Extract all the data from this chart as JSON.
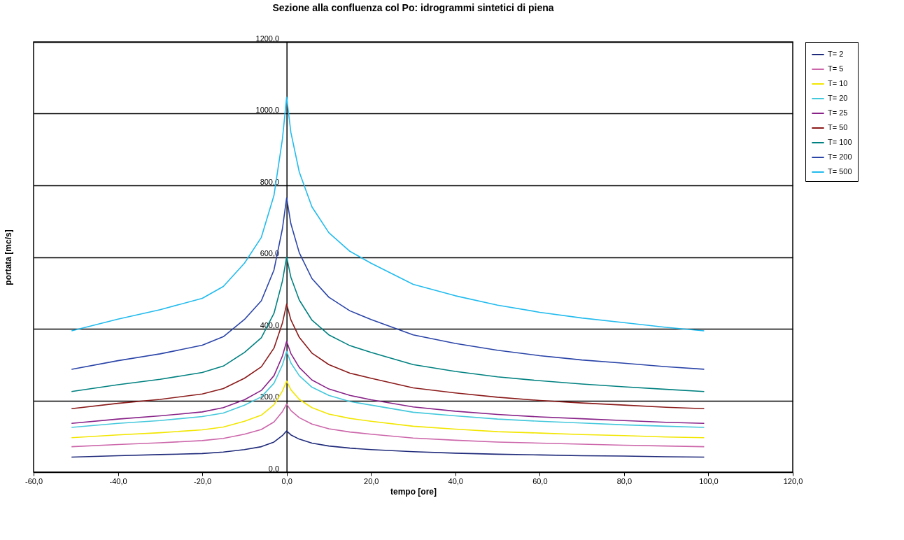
{
  "chart_data": {
    "type": "line",
    "title": "Sezione alla confluenza col Po: idrogrammi sintetici di piena",
    "xlabel": "tempo [ore]",
    "ylabel": "portata [mc/s]",
    "x": [
      -51,
      -40,
      -30,
      -20,
      -15,
      -10,
      -6,
      -3,
      -1,
      0,
      1,
      3,
      6,
      10,
      15,
      20,
      30,
      40,
      50,
      60,
      70,
      80,
      90,
      99
    ],
    "series": [
      {
        "name": "T= 2",
        "color": "#1f2a7a",
        "values": [
          42,
          46,
          49,
          52,
          56,
          63,
          71,
          84,
          102,
          115,
          104,
          92,
          81,
          73,
          67,
          63,
          57,
          53,
          50,
          48,
          46,
          45,
          43,
          42
        ]
      },
      {
        "name": "T= 5",
        "color": "#cc66aa",
        "values": [
          71,
          77,
          82,
          88,
          94,
          106,
          119,
          140,
          169,
          190,
          172,
          152,
          134,
          121,
          112,
          106,
          95,
          89,
          84,
          81,
          78,
          75,
          73,
          71
        ]
      },
      {
        "name": "T= 10",
        "color": "#f2e600",
        "values": [
          96,
          104,
          110,
          118,
          126,
          142,
          159,
          188,
          226,
          254,
          230,
          203,
          180,
          162,
          150,
          142,
          128,
          120,
          113,
          109,
          105,
          102,
          98,
          96
        ]
      },
      {
        "name": "T= 20",
        "color": "#44c8dc",
        "values": [
          125,
          136,
          144,
          155,
          165,
          187,
          210,
          248,
          299,
          337,
          305,
          269,
          237,
          214,
          197,
          187,
          167,
          157,
          148,
          142,
          137,
          132,
          128,
          125
        ]
      },
      {
        "name": "T= 25",
        "color": "#882288",
        "values": [
          136,
          148,
          157,
          168,
          180,
          202,
          228,
          269,
          324,
          365,
          331,
          292,
          257,
          232,
          214,
          202,
          182,
          170,
          161,
          154,
          149,
          144,
          139,
          136
        ]
      },
      {
        "name": "T= 50",
        "color": "#8b1a1a",
        "values": [
          177,
          192,
          203,
          218,
          233,
          262,
          294,
          346,
          416,
          469,
          425,
          376,
          332,
          300,
          276,
          262,
          235,
          221,
          209,
          200,
          193,
          187,
          181,
          177
        ]
      },
      {
        "name": "T= 100",
        "color": "#008080",
        "values": [
          225,
          244,
          259,
          278,
          296,
          334,
          375,
          443,
          533,
          600,
          544,
          480,
          424,
          383,
          353,
          334,
          300,
          281,
          266,
          255,
          246,
          238,
          231,
          225
        ]
      },
      {
        "name": "T= 200",
        "color": "#2a44a8",
        "values": [
          287,
          311,
          330,
          354,
          378,
          426,
          478,
          564,
          679,
          765,
          693,
          612,
          540,
          488,
          450,
          426,
          383,
          359,
          340,
          325,
          313,
          304,
          294,
          287
        ]
      },
      {
        "name": "T= 500",
        "color": "#22bbee",
        "values": [
          394,
          427,
          453,
          485,
          518,
          583,
          655,
          772,
          929,
          1046,
          948,
          837,
          740,
          668,
          616,
          583,
          524,
          492,
          466,
          446,
          430,
          417,
          404,
          394
        ]
      }
    ],
    "xlim": [
      -60,
      120
    ],
    "xticks": [
      {
        "value": -60,
        "label": "-60,0"
      },
      {
        "value": -40,
        "label": "-40,0"
      },
      {
        "value": -20,
        "label": "-20,0"
      },
      {
        "value": 0,
        "label": "0,0"
      },
      {
        "value": 20,
        "label": "20,0"
      },
      {
        "value": 40,
        "label": "40,0"
      },
      {
        "value": 60,
        "label": "60,0"
      },
      {
        "value": 80,
        "label": "80,0"
      },
      {
        "value": 100,
        "label": "100,0"
      },
      {
        "value": 120,
        "label": "120,0"
      }
    ],
    "ylim": [
      0,
      1200
    ],
    "yticks": [
      {
        "value": 0,
        "label": "0,0"
      },
      {
        "value": 200,
        "label": "200,0"
      },
      {
        "value": 400,
        "label": "400,0"
      },
      {
        "value": 600,
        "label": "600,0"
      },
      {
        "value": 800,
        "label": "800,0"
      },
      {
        "value": 1000,
        "label": "1000,0"
      },
      {
        "value": 1200,
        "label": "1200,0"
      }
    ],
    "grid": "y",
    "legend": "right",
    "marker": "none",
    "line_style": "solid"
  }
}
